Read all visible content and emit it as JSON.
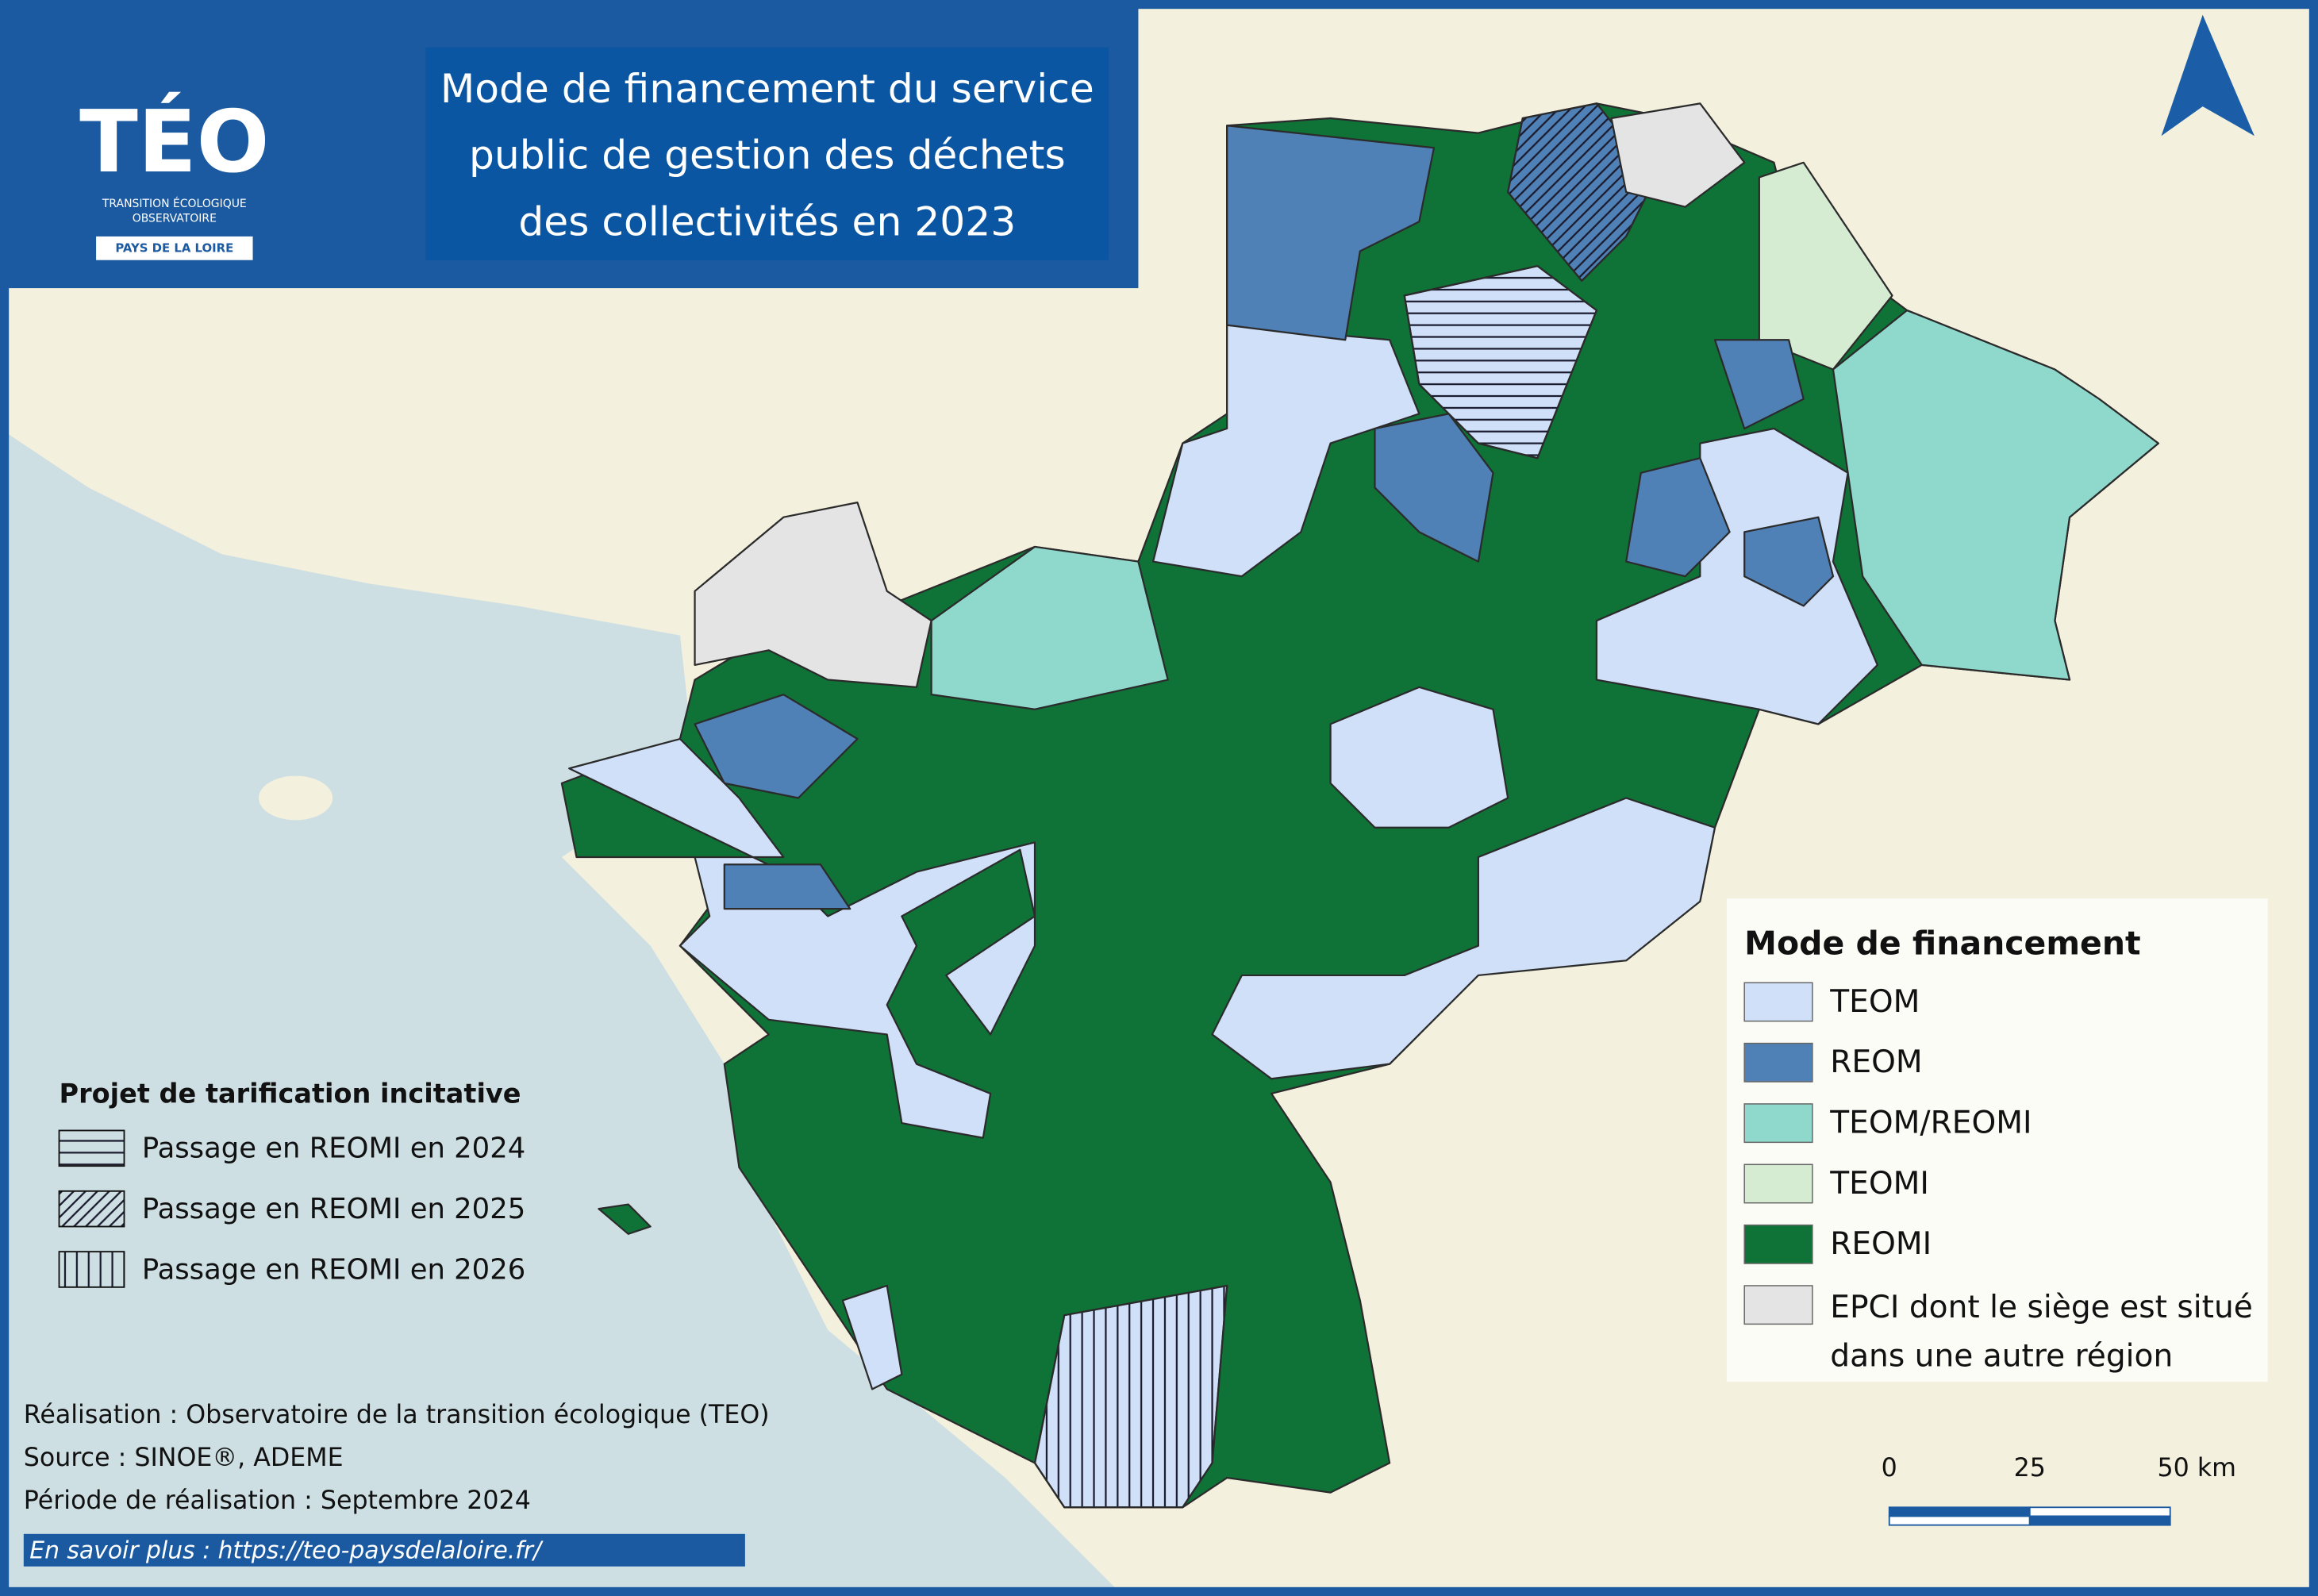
{
  "logo": {
    "name": "TÉO",
    "line1": "TRANSITION ÉCOLOGIQUE",
    "line2": "OBSERVATOIRE",
    "region": "PAYS DE LA LOIRE"
  },
  "title": [
    "Mode de financement du service",
    "public de gestion des déchets",
    "des collectivités en 2023"
  ],
  "legend": {
    "title": "Mode de financement",
    "items": [
      {
        "label": "TEOM",
        "color": "#cfe0f8"
      },
      {
        "label": "REOM",
        "color": "#5081b6"
      },
      {
        "label": "TEOM/REOMI",
        "color": "#8fd8cc"
      },
      {
        "label": "TEOMI",
        "color": "#d6ecd2"
      },
      {
        "label": "REOMI",
        "color": "#0f7338"
      },
      {
        "label": [
          "EPCI dont le siège est situé",
          "dans une autre région"
        ],
        "color": "#e4e4e4"
      }
    ]
  },
  "incentive_legend": {
    "title": "Projet de tarification incitative",
    "items": [
      {
        "label": "Passage en REOMI en 2024",
        "pattern": "horizontal"
      },
      {
        "label": "Passage en REOMI en 2025",
        "pattern": "diagonal"
      },
      {
        "label": "Passage en REOMI en 2026",
        "pattern": "vertical"
      }
    ]
  },
  "credits": [
    "Réalisation : Observatoire de la transition écologique (TEO)",
    "Source : SINOE®, ADEME",
    "Période de réalisation : Septembre 2024"
  ],
  "link": "En savoir plus : https://teo-paysdelaloire.fr/",
  "scale_bar": {
    "labels": [
      "0",
      "25",
      "50 km"
    ]
  }
}
